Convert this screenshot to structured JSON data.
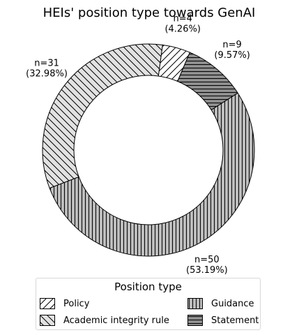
{
  "chart_data": {
    "type": "pie",
    "donut": true,
    "title": "HEIs' position type towards GenAI",
    "legend_title": "Position type",
    "legend_placement": "bottom",
    "slices": [
      {
        "name": "Policy",
        "n": 4,
        "value": 4.26,
        "label_n": "n=4",
        "label_pct": "(4.26%)",
        "color": "#ffffff",
        "hatch": "forward-diagonal"
      },
      {
        "name": "Academic integrity rule",
        "n": 31,
        "value": 32.98,
        "label_n": "n=31",
        "label_pct": "(32.98%)",
        "color": "#e2e2e2",
        "hatch": "back-diagonal"
      },
      {
        "name": "Guidance",
        "n": 50,
        "value": 53.19,
        "label_n": "n=50",
        "label_pct": "(53.19%)",
        "color": "#bdbdbd",
        "hatch": "vertical"
      },
      {
        "name": "Statement",
        "n": 9,
        "value": 9.57,
        "label_n": "n=9",
        "label_pct": "(9.57%)",
        "color": "#8f8f8f",
        "hatch": "horizontal"
      }
    ]
  }
}
